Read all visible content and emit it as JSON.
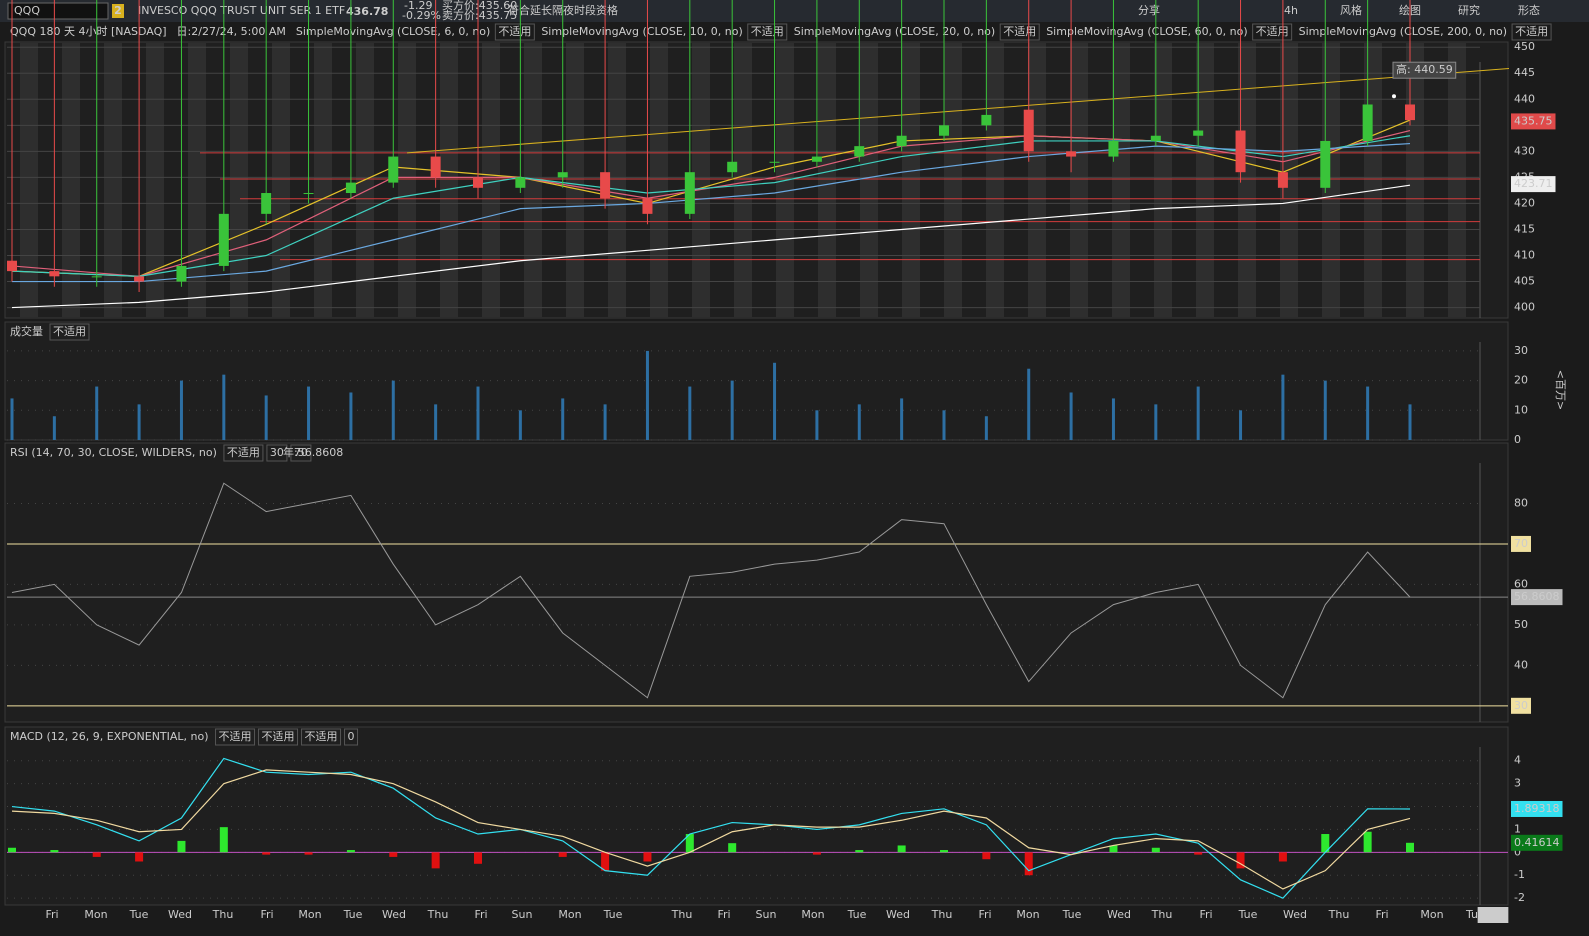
{
  "toolbar": {
    "symbol": "QQQ",
    "link_badge": "2",
    "description": "INVESCO QQQ TRUST UNIT SER 1 ETF",
    "last": "436.78",
    "change": "-1.29",
    "change_pct": "-0.29%",
    "bid": "买方价:435.60",
    "ask": "卖方价:435.75",
    "extended": "符合延长隔夜时段资格",
    "buttons": [
      "分享",
      "4h",
      "风格",
      "绘图",
      "研究",
      "形态"
    ]
  },
  "chart_data": [
    {
      "type": "candlestick",
      "title": "QQQ 180 天 4小时 [NASDAQ]",
      "date_label": "日:2/27/24, 5:00 AM",
      "na": "不适用",
      "open": [
        409,
        407,
        406,
        406,
        405,
        408,
        418,
        422,
        422,
        424,
        429,
        425,
        423,
        425,
        426,
        421,
        418,
        426,
        428,
        428,
        429,
        431,
        433,
        435,
        438,
        430,
        429,
        432,
        433,
        434,
        426,
        423,
        432,
        439
      ],
      "high": 440.59,
      "low": [
        405,
        404,
        404,
        403,
        404,
        407,
        416,
        420,
        421,
        423,
        423,
        421,
        422,
        423,
        419,
        416,
        417,
        425,
        426,
        427,
        428,
        430,
        432,
        434,
        428,
        426,
        428,
        431,
        431,
        424,
        421,
        422,
        431,
        435
      ],
      "close": [
        407,
        406,
        406,
        405,
        408,
        418,
        422,
        422,
        424,
        429,
        425,
        423,
        425,
        426,
        421,
        418,
        426,
        428,
        428,
        429,
        431,
        433,
        435,
        437,
        430,
        429,
        432,
        433,
        434,
        426,
        423,
        432,
        439,
        436
      ],
      "series": [
        {
          "name": "SimpleMovingAvg (CLOSE, 6, 0, no)",
          "color": "#e5c22a",
          "values": [
            407,
            406,
            416,
            427,
            425,
            420,
            427,
            432,
            433,
            432,
            426,
            436
          ]
        },
        {
          "name": "SimpleMovingAvg (CLOSE, 10, 0, no)",
          "color": "#e0607a",
          "values": [
            408,
            406,
            413,
            425,
            425,
            421,
            425,
            431,
            433,
            432,
            428,
            434
          ]
        },
        {
          "name": "SimpleMovingAvg (CLOSE, 20, 0, no)",
          "color": "#3fd1c0",
          "values": [
            407,
            406,
            410,
            421,
            425,
            422,
            424,
            429,
            432,
            432,
            429,
            433
          ]
        },
        {
          "name": "SimpleMovingAvg (CLOSE, 60, 0, no)",
          "color": "#6aa8e0",
          "values": [
            405,
            405,
            407,
            413,
            419,
            420,
            422,
            426,
            429,
            431,
            430,
            431.5
          ]
        },
        {
          "name": "SimpleMovingAvg (CLOSE, 200, 0, no)",
          "color": "#ffffff",
          "values": [
            400,
            401,
            403,
            406,
            409,
            411,
            413,
            415,
            417,
            419,
            420,
            423.5
          ]
        }
      ],
      "levels": [
        429.7,
        424.7,
        420.9,
        416.5,
        409.2
      ],
      "trendline": [
        429.7,
        445.9
      ],
      "last_price": 435.75,
      "sma_tag": 423.71,
      "high_label": "高: 440.59",
      "ylim": [
        398,
        451
      ],
      "yticks": [
        400,
        405,
        410,
        415,
        420,
        425,
        430,
        435,
        440,
        445,
        450
      ]
    },
    {
      "type": "bar",
      "title": "成交量",
      "na": "不适用",
      "unit": "<百万>",
      "color": "#2d6fa3",
      "values": [
        14,
        8,
        18,
        12,
        20,
        22,
        15,
        18,
        16,
        20,
        12,
        18,
        10,
        14,
        12,
        30,
        18,
        20,
        26,
        10,
        12,
        14,
        10,
        8,
        24,
        16,
        14,
        12,
        18,
        10,
        22,
        20,
        18,
        12
      ],
      "ylim": [
        0,
        33
      ],
      "yticks": [
        0,
        10,
        20,
        30
      ]
    },
    {
      "type": "line",
      "title": "RSI (14, 70, 30, CLOSE, WILDERS, no)",
      "na": "不适用",
      "year_label": "年:56.8608",
      "values": [
        58,
        60,
        50,
        45,
        58,
        85,
        78,
        80,
        82,
        65,
        50,
        55,
        62,
        48,
        40,
        32,
        62,
        63,
        65,
        66,
        68,
        76,
        75,
        55,
        36,
        48,
        55,
        58,
        60,
        40,
        32,
        55,
        68,
        56.8608
      ],
      "overbought": 70,
      "oversold": 30,
      "last_value": 56.8608,
      "ylim": [
        26,
        90
      ],
      "yticks": [
        40,
        50,
        60,
        80
      ]
    },
    {
      "type": "macd",
      "title": "MACD (12, 26, 9, EXPONENTIAL, no)",
      "na": "不适用",
      "zero_label": "0",
      "series": [
        {
          "name": "Value",
          "color": "#33e0f0",
          "values": [
            2,
            1.8,
            1.2,
            0.5,
            1.5,
            4.1,
            3.5,
            3.4,
            3.5,
            2.8,
            1.5,
            0.8,
            1,
            0.5,
            -0.8,
            -1,
            0.8,
            1.3,
            1.2,
            1,
            1.2,
            1.7,
            1.9,
            1.2,
            -0.8,
            -0.1,
            0.6,
            0.8,
            0.4,
            -1.2,
            -2,
            0,
            1.9,
            1.89318
          ]
        },
        {
          "name": "Avg",
          "color": "#f0d9a0",
          "values": [
            1.8,
            1.7,
            1.4,
            0.9,
            1.0,
            3,
            3.6,
            3.5,
            3.4,
            3,
            2.2,
            1.3,
            1,
            0.7,
            0,
            -0.6,
            0,
            0.9,
            1.2,
            1.1,
            1.1,
            1.4,
            1.8,
            1.5,
            0.2,
            -0.1,
            0.3,
            0.6,
            0.5,
            -0.5,
            -1.6,
            -0.8,
            1,
            1.48
          ]
        }
      ],
      "hist": [
        0.2,
        0.1,
        -0.2,
        -0.4,
        0.5,
        1.1,
        -0.1,
        -0.1,
        0.1,
        -0.2,
        -0.7,
        -0.5,
        0,
        -0.2,
        -0.8,
        -0.4,
        0.8,
        0.4,
        0,
        -0.1,
        0.1,
        0.3,
        0.1,
        -0.3,
        -1,
        0,
        0.3,
        0.2,
        -0.1,
        -0.7,
        -0.4,
        0.8,
        0.9,
        0.41614
      ],
      "value_tag": 1.89318,
      "hist_tag": 0.41614,
      "ylim": [
        -2.3,
        4.6
      ],
      "yticks": [
        -2,
        -1,
        0,
        1,
        2,
        3,
        4
      ]
    }
  ],
  "time_axis": {
    "labels": [
      "Fri",
      "Mon",
      "Tue",
      "Wed",
      "Thu",
      "Fri",
      "Mon",
      "Tue",
      "Wed",
      "Thu",
      "Fri",
      "Sun",
      "Mon",
      "Tue",
      "Thu",
      "Fri",
      "Sun",
      "Mon",
      "Tue",
      "Wed",
      "Thu",
      "Fri",
      "Mon",
      "Tue",
      "Wed",
      "Thu",
      "Fri",
      "Tue",
      "Wed",
      "Thu",
      "Fri",
      "Mon",
      "Tu"
    ],
    "cursor": "5:00"
  }
}
